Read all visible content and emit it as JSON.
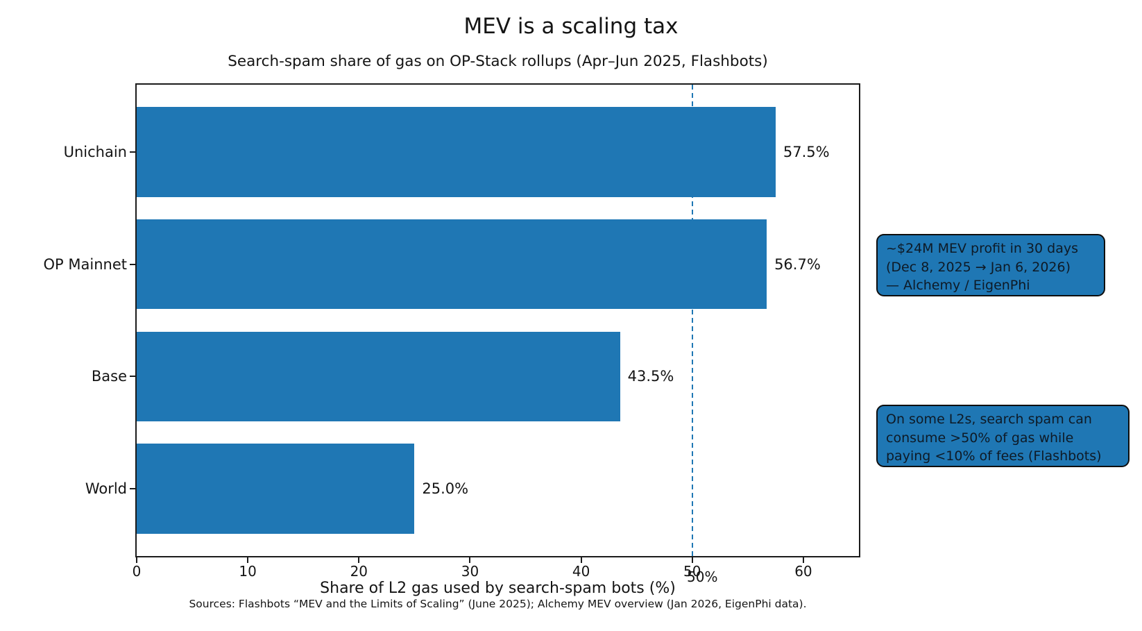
{
  "chart_data": {
    "type": "bar",
    "orientation": "horizontal",
    "title": "MEV is a scaling tax",
    "subtitle": "Search-spam share of gas on OP-Stack rollups (Apr–Jun 2025, Flashbots)",
    "categories": [
      "Unichain",
      "OP Mainnet",
      "Base",
      "World"
    ],
    "values": [
      57.5,
      56.7,
      43.5,
      25.0
    ],
    "value_labels": [
      "57.5%",
      "56.7%",
      "43.5%",
      "25.0%"
    ],
    "xlabel": "Share of L2 gas used by search-spam bots (%)",
    "xlim": [
      0,
      65
    ],
    "xticks": [
      0,
      10,
      20,
      30,
      40,
      50,
      60
    ],
    "grid": false,
    "legend": "none",
    "bar_color": "#1f77b4",
    "reference_line": {
      "x": 50,
      "label": "50%",
      "style": "dashed",
      "color": "#1f77b4"
    },
    "annotations": [
      {
        "text": "~$24M MEV profit in 30 days\n(Dec 8, 2025 → Jan 6, 2026)\n— Alchemy / EigenPhi"
      },
      {
        "text": "On some L2s, search spam can\nconsume >50% of gas while\npaying <10% of fees (Flashbots)"
      }
    ],
    "source": "Sources: Flashbots “MEV and the Limits of Scaling” (June 2025); Alchemy MEV overview (Jan 2026, EigenPhi data)."
  }
}
